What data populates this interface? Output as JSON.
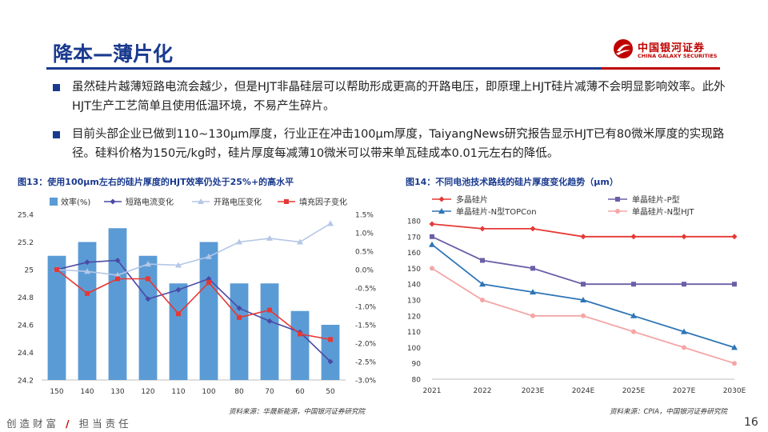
{
  "header": {
    "title": "降本—薄片化"
  },
  "logo": {
    "cn": "中国银河证券",
    "en": "CHINA GALAXY SECURITIES"
  },
  "bullets": [
    "虽然硅片越薄短路电流会越少，但是HJT非晶硅层可以帮助形成更高的开路电压，即原理上HJT硅片减薄不会明显影响效率。此外HJT生产工艺简单且使用低温环境，不易产生碎片。",
    "目前头部企业已做到110~130μm厚度，行业正在冲击100μm厚度，TaiyangNews研究报告显示HJT已有80微米厚度的实现路径。硅料价格为150元/kg时，硅片厚度每减薄10微米可以带来单瓦硅成本0.01元左右的降低。"
  ],
  "figures": {
    "fig13": {
      "title": "图13：使用100μm左右的硅片厚度的HJT效率仍处于25%+的高水平",
      "source": "资料来源：华晟新能源，中国银河证券研究院"
    },
    "fig14": {
      "title": "图14：不同电池技术路线的硅片厚度变化趋势（μm）",
      "source": "资料来源：CPIA，中国银河证券研究院"
    }
  },
  "footer": {
    "slogan_left": "创造财富",
    "slash": "/",
    "slogan_right": "担当责任",
    "page": "16"
  },
  "colors": {
    "brand_blue": "#1a3a8f",
    "brand_red": "#c00000",
    "bar": "#5b9bd5",
    "short_circuit": "#4b4aa6",
    "open_circuit": "#b4c7e7",
    "fill_factor": "#e53935",
    "poly": "#e53935",
    "mono_p": "#6b5fa8",
    "mono_topcon": "#2e75b6",
    "mono_hjt": "#f4a6a6"
  },
  "chart_data": [
    {
      "type": "bar",
      "categories": [
        "150",
        "140",
        "130",
        "120",
        "110",
        "100",
        "80",
        "70",
        "60",
        "50"
      ],
      "ylim": [
        24.2,
        25.4
      ],
      "yticks": [
        24.2,
        24.4,
        24.6,
        24.8,
        25,
        25.2,
        25.4
      ],
      "y2lim": [
        -3.0,
        1.5
      ],
      "y2ticks": [
        "1.5%",
        "1.0%",
        "0.5%",
        "0.0%",
        "-0.5%",
        "-1.0%",
        "-1.5%",
        "-2.0%",
        "-2.5%",
        "-3.0%"
      ],
      "legend_position": "top",
      "series": [
        {
          "name": "效率(%)",
          "kind": "bar",
          "axis": "left",
          "values": [
            25.1,
            25.2,
            25.3,
            25.1,
            24.9,
            25.2,
            24.9,
            24.9,
            24.7,
            24.6
          ]
        },
        {
          "name": "短路电流变化",
          "kind": "line",
          "axis": "right",
          "values": [
            0.0,
            0.2,
            0.25,
            -0.8,
            -0.55,
            -0.25,
            -1.05,
            -1.4,
            -1.7,
            -2.5
          ]
        },
        {
          "name": "开路电压变化",
          "kind": "line",
          "axis": "right",
          "values": [
            0.0,
            -0.05,
            -0.15,
            0.15,
            0.12,
            0.35,
            0.75,
            0.85,
            0.75,
            1.25
          ]
        },
        {
          "name": "填充因子变化",
          "kind": "line",
          "axis": "right",
          "values": [
            0.0,
            -0.65,
            -0.25,
            -0.25,
            -1.2,
            -0.35,
            -1.3,
            -1.1,
            -1.75,
            -1.9
          ]
        }
      ]
    },
    {
      "type": "line",
      "categories": [
        "2021",
        "2022",
        "2023E",
        "2024E",
        "2025E",
        "2027E",
        "2030E"
      ],
      "ylim": [
        80,
        180
      ],
      "yticks": [
        80,
        90,
        100,
        110,
        120,
        130,
        140,
        150,
        160,
        170,
        180
      ],
      "legend_position": "top",
      "series": [
        {
          "name": "多晶硅片",
          "values": [
            178,
            175,
            175,
            170,
            170,
            170,
            170
          ]
        },
        {
          "name": "单晶硅片-P型",
          "values": [
            170,
            155,
            150,
            140,
            140,
            140,
            140
          ]
        },
        {
          "name": "单晶硅片-N型TOPCon",
          "values": [
            165,
            140,
            135,
            130,
            120,
            110,
            100
          ]
        },
        {
          "name": "单晶硅片-N型HJT",
          "values": [
            150,
            130,
            120,
            120,
            110,
            100,
            90
          ]
        }
      ]
    }
  ]
}
